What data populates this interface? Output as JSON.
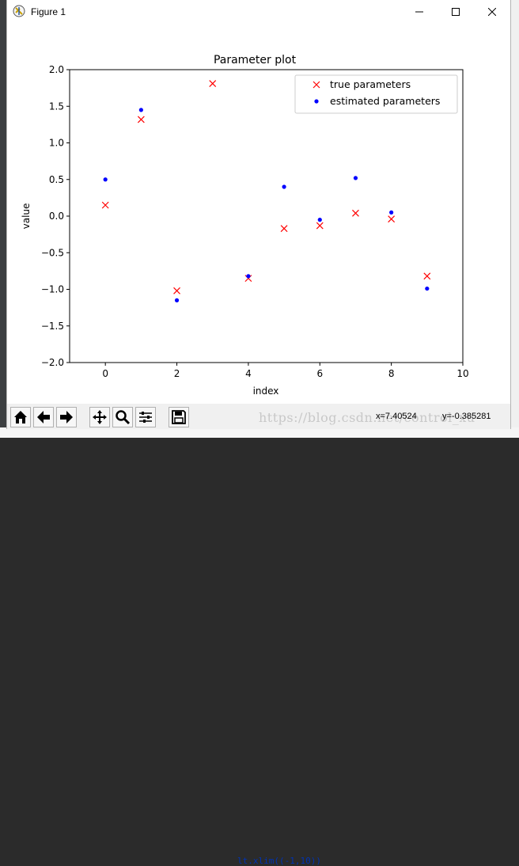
{
  "window": {
    "title": "Figure 1",
    "minimize_icon": "minimize-icon",
    "maximize_icon": "maximize-icon",
    "close_icon": "close-icon"
  },
  "toolbar": {
    "buttons": [
      "home-icon",
      "back-arrow-icon",
      "forward-arrow-icon",
      "pan-icon",
      "zoom-icon",
      "subplots-icon",
      "save-icon"
    ],
    "coord_x": "x=7.40524",
    "coord_y": "y=-0.385281",
    "watermark": "https://blog.csdn.net/control_xu"
  },
  "background": {
    "code_fragment": "lt.xlim((-1,10))"
  },
  "colors": {
    "true_marker": "#ff0000",
    "estimated_marker": "#0000ff"
  },
  "chart_data": {
    "type": "scatter",
    "title": "Parameter plot",
    "xlabel": "index",
    "ylabel": "value",
    "xlim": [
      -1,
      10
    ],
    "ylim": [
      -2.0,
      2.0
    ],
    "xticks": [
      0,
      2,
      4,
      6,
      8,
      10
    ],
    "xtick_labels": [
      "0",
      "2",
      "4",
      "6",
      "8",
      "10"
    ],
    "yticks": [
      2.0,
      1.5,
      1.0,
      0.5,
      0.0,
      -0.5,
      -1.0,
      -1.5,
      -2.0
    ],
    "ytick_labels": [
      "2.0",
      "1.5",
      "1.0",
      "0.5",
      "0.0",
      "−0.5",
      "−1.0",
      "−1.5",
      "−2.0"
    ],
    "grid": false,
    "legend_position": "upper right",
    "series": [
      {
        "name": "true parameters",
        "marker": "x",
        "color": "#ff0000",
        "x": [
          0,
          1,
          2,
          3,
          4,
          5,
          6,
          7,
          8,
          9
        ],
        "y": [
          0.15,
          1.32,
          -1.02,
          1.81,
          -0.85,
          -0.17,
          -0.13,
          0.04,
          -0.04,
          -0.82
        ]
      },
      {
        "name": "estimated parameters",
        "marker": "dot",
        "color": "#0000ff",
        "x": [
          0,
          1,
          2,
          3,
          4,
          5,
          6,
          7,
          8,
          9
        ],
        "y": [
          0.5,
          1.45,
          -1.15,
          null,
          -0.82,
          0.4,
          -0.05,
          0.52,
          0.05,
          -0.99
        ]
      }
    ]
  }
}
